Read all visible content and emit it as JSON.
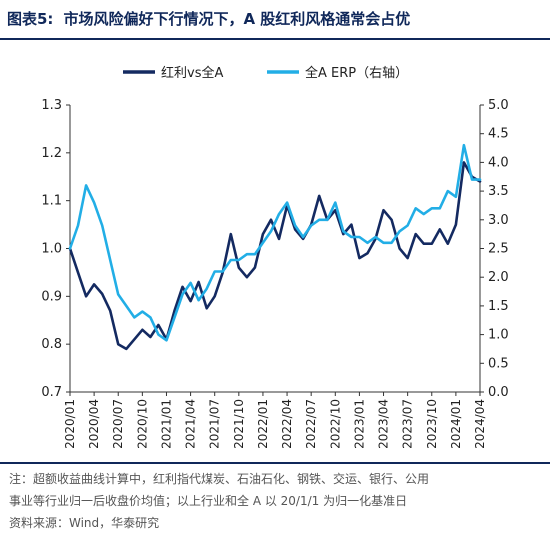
{
  "header": {
    "figure_label": "图表5:",
    "title": "市场风险偏好下行情况下，A 股红利风格通常会占优"
  },
  "notes": {
    "line1": "注：超额收益曲线计算中，红利指代煤炭、石油石化、钢铁、交运、银行、公用",
    "line2": "事业等行业归一后收盘价均值；以上行业和全 A 以 20/1/1 为归一化基准日",
    "source": "资料来源：Wind，华泰研究"
  },
  "chart_data": {
    "type": "line",
    "title": "",
    "legend_position": "top",
    "grid": false,
    "x_tick_labels": [
      "2020/01",
      "2020/04",
      "2020/07",
      "2020/10",
      "2021/01",
      "2021/04",
      "2021/07",
      "2021/10",
      "2022/01",
      "2022/04",
      "2022/07",
      "2022/10",
      "2023/01",
      "2023/04",
      "2023/07",
      "2023/10",
      "2024/01",
      "2024/04"
    ],
    "x_range": [
      "2020-01",
      "2024-04"
    ],
    "y_left": {
      "min": 0.7,
      "max": 1.3,
      "step": 0.1,
      "tick_labels": [
        "0.7",
        "0.8",
        "0.9",
        "1.0",
        "1.1",
        "1.2",
        "1.3"
      ]
    },
    "y_right": {
      "min": 0.0,
      "max": 5.0,
      "step": 0.5,
      "tick_labels": [
        "0.0",
        "0.5",
        "1.0",
        "1.5",
        "2.0",
        "2.5",
        "3.0",
        "3.5",
        "4.0",
        "4.5",
        "5.0"
      ]
    },
    "series": [
      {
        "name": "红利vs全A",
        "axis": "left",
        "color": "#142a61",
        "points": [
          [
            "2020-01",
            1.0
          ],
          [
            "2020-02",
            0.95
          ],
          [
            "2020-03",
            0.9
          ],
          [
            "2020-04",
            0.925
          ],
          [
            "2020-05",
            0.905
          ],
          [
            "2020-06",
            0.87
          ],
          [
            "2020-07",
            0.8
          ],
          [
            "2020-08",
            0.79
          ],
          [
            "2020-09",
            0.81
          ],
          [
            "2020-10",
            0.83
          ],
          [
            "2020-11",
            0.815
          ],
          [
            "2020-12",
            0.84
          ],
          [
            "2021-01",
            0.81
          ],
          [
            "2021-02",
            0.87
          ],
          [
            "2021-03",
            0.92
          ],
          [
            "2021-04",
            0.89
          ],
          [
            "2021-05",
            0.93
          ],
          [
            "2021-06",
            0.875
          ],
          [
            "2021-07",
            0.9
          ],
          [
            "2021-08",
            0.95
          ],
          [
            "2021-09",
            1.03
          ],
          [
            "2021-10",
            0.96
          ],
          [
            "2021-11",
            0.94
          ],
          [
            "2021-12",
            0.96
          ],
          [
            "2022-01",
            1.03
          ],
          [
            "2022-02",
            1.06
          ],
          [
            "2022-03",
            1.02
          ],
          [
            "2022-04",
            1.09
          ],
          [
            "2022-05",
            1.04
          ],
          [
            "2022-06",
            1.02
          ],
          [
            "2022-07",
            1.05
          ],
          [
            "2022-08",
            1.11
          ],
          [
            "2022-09",
            1.06
          ],
          [
            "2022-10",
            1.08
          ],
          [
            "2022-11",
            1.03
          ],
          [
            "2022-12",
            1.05
          ],
          [
            "2023-01",
            0.98
          ],
          [
            "2023-02",
            0.99
          ],
          [
            "2023-03",
            1.02
          ],
          [
            "2023-04",
            1.08
          ],
          [
            "2023-05",
            1.06
          ],
          [
            "2023-06",
            1.0
          ],
          [
            "2023-07",
            0.98
          ],
          [
            "2023-08",
            1.03
          ],
          [
            "2023-09",
            1.01
          ],
          [
            "2023-10",
            1.01
          ],
          [
            "2023-11",
            1.04
          ],
          [
            "2023-12",
            1.01
          ],
          [
            "2024-01",
            1.05
          ],
          [
            "2024-02",
            1.18
          ],
          [
            "2024-03",
            1.15
          ],
          [
            "2024-04",
            1.14
          ]
        ]
      },
      {
        "name": "全A ERP（右轴）",
        "axis": "right",
        "color": "#22aee6",
        "points": [
          [
            "2020-01",
            2.5
          ],
          [
            "2020-02",
            2.9
          ],
          [
            "2020-03",
            3.6
          ],
          [
            "2020-04",
            3.3
          ],
          [
            "2020-05",
            2.9
          ],
          [
            "2020-06",
            2.3
          ],
          [
            "2020-07",
            1.7
          ],
          [
            "2020-08",
            1.5
          ],
          [
            "2020-09",
            1.3
          ],
          [
            "2020-10",
            1.4
          ],
          [
            "2020-11",
            1.3
          ],
          [
            "2020-12",
            1.0
          ],
          [
            "2021-01",
            0.9
          ],
          [
            "2021-02",
            1.3
          ],
          [
            "2021-03",
            1.7
          ],
          [
            "2021-04",
            1.9
          ],
          [
            "2021-05",
            1.6
          ],
          [
            "2021-06",
            1.8
          ],
          [
            "2021-07",
            2.1
          ],
          [
            "2021-08",
            2.1
          ],
          [
            "2021-09",
            2.3
          ],
          [
            "2021-10",
            2.3
          ],
          [
            "2021-11",
            2.4
          ],
          [
            "2021-12",
            2.4
          ],
          [
            "2022-01",
            2.6
          ],
          [
            "2022-02",
            2.8
          ],
          [
            "2022-03",
            3.1
          ],
          [
            "2022-04",
            3.3
          ],
          [
            "2022-05",
            2.9
          ],
          [
            "2022-06",
            2.7
          ],
          [
            "2022-07",
            2.9
          ],
          [
            "2022-08",
            3.0
          ],
          [
            "2022-09",
            3.0
          ],
          [
            "2022-10",
            3.3
          ],
          [
            "2022-11",
            2.8
          ],
          [
            "2022-12",
            2.7
          ],
          [
            "2023-01",
            2.7
          ],
          [
            "2023-02",
            2.6
          ],
          [
            "2023-03",
            2.7
          ],
          [
            "2023-04",
            2.6
          ],
          [
            "2023-05",
            2.6
          ],
          [
            "2023-06",
            2.8
          ],
          [
            "2023-07",
            2.9
          ],
          [
            "2023-08",
            3.2
          ],
          [
            "2023-09",
            3.1
          ],
          [
            "2023-10",
            3.2
          ],
          [
            "2023-11",
            3.2
          ],
          [
            "2023-12",
            3.5
          ],
          [
            "2024-01",
            3.4
          ],
          [
            "2024-02",
            4.3
          ],
          [
            "2024-03",
            3.7
          ],
          [
            "2024-04",
            3.7
          ]
        ]
      }
    ]
  }
}
